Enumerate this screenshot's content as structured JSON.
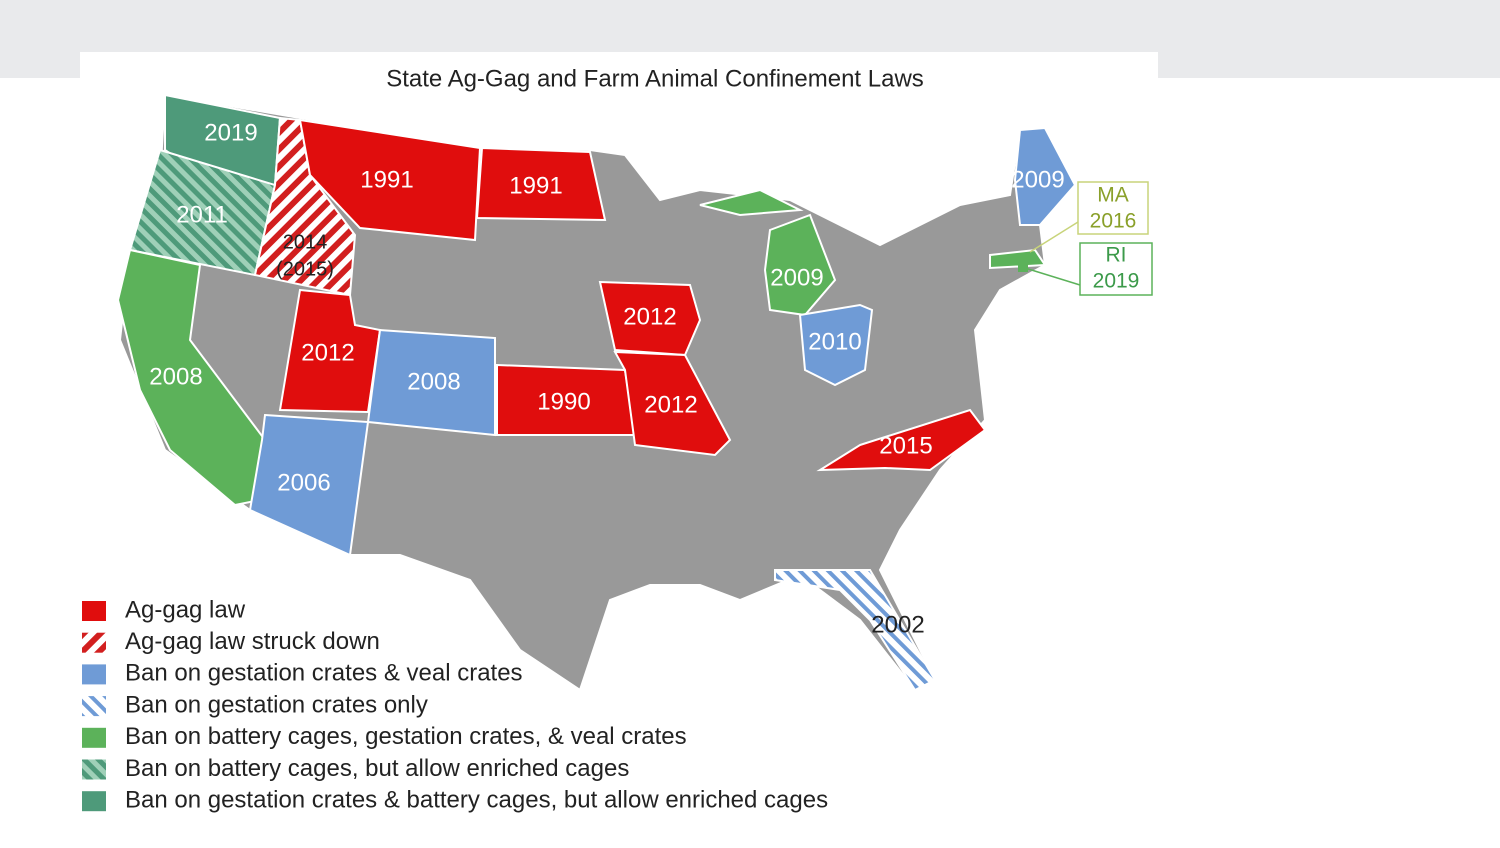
{
  "title": "State Ag-Gag and Farm Animal Confinement Laws",
  "map_labels": [
    "2019",
    "2011",
    "2014",
    "(2015)",
    "1991",
    "1991",
    "2008",
    "2012",
    "2008",
    "2006",
    "1990",
    "2012",
    "2012",
    "2010",
    "2009",
    "2015",
    "2009",
    "2002"
  ],
  "callouts": [
    {
      "state": "MA",
      "year": "2016"
    },
    {
      "state": "RI",
      "year": "2019"
    }
  ],
  "legend": [
    "Ag-gag law",
    "Ag-gag law struck down",
    "Ban on gestation crates & veal crates",
    "Ban on gestation crates only",
    "Ban on battery cages, gestation crates, & veal crates",
    "Ban on battery cages, but allow enriched cages",
    "Ban on gestation crates & battery cages, but allow enriched cages"
  ]
}
